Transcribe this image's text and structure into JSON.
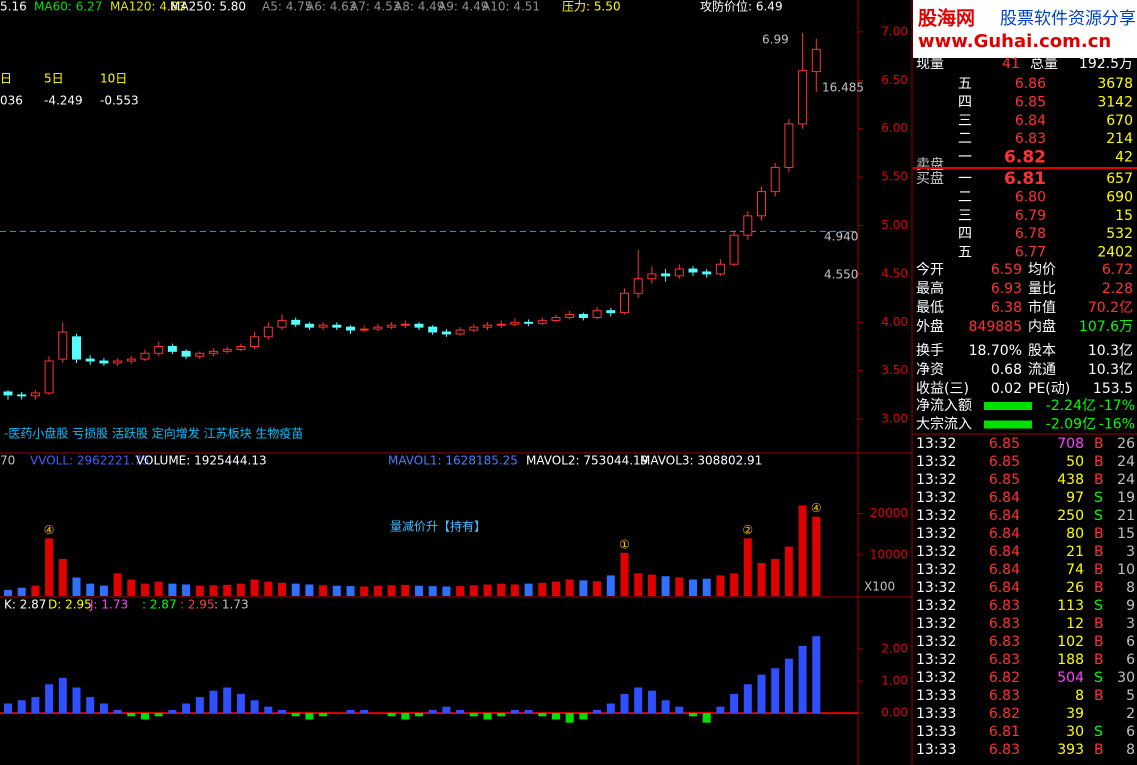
{
  "top_bar": [
    "5.16",
    "MA60: 6.27",
    "MA120: 4.83",
    "MA250: 5.80",
    "A5: 4.75",
    "A6: 4.63",
    "A7: 4.53",
    "A8: 4.49",
    "A9: 4.49",
    "A10: 4.51",
    "压力: 5.50",
    "攻防价位: 6.49"
  ],
  "period_labels": [
    "日",
    "5日",
    "10日"
  ],
  "period_values": [
    "036",
    "-4.249",
    "-0.553"
  ],
  "price_chart": {
    "type": "candlestick",
    "open": [
      3.28,
      3.25,
      3.24,
      3.27,
      3.62,
      3.85,
      3.62,
      3.6,
      3.58,
      3.6,
      3.62,
      3.68,
      3.75,
      3.7,
      3.65,
      3.68,
      3.7,
      3.72,
      3.75,
      3.85,
      3.95,
      4.02,
      3.98,
      3.95,
      3.97,
      3.95,
      3.92,
      3.93,
      3.95,
      3.97,
      3.98,
      3.95,
      3.9,
      3.88,
      3.92,
      3.95,
      3.97,
      3.98,
      4.0,
      3.99,
      4.02,
      4.05,
      4.08,
      4.05,
      4.12,
      4.1,
      4.3,
      4.45,
      4.5,
      4.48,
      4.55,
      4.52,
      4.5,
      4.6,
      4.9,
      5.1,
      5.35,
      5.6,
      6.05,
      6.59
    ],
    "high": [
      3.3,
      3.28,
      3.3,
      3.65,
      4.0,
      3.88,
      3.66,
      3.63,
      3.63,
      3.65,
      3.72,
      3.8,
      3.78,
      3.72,
      3.7,
      3.73,
      3.75,
      3.78,
      3.9,
      4.0,
      4.08,
      4.05,
      4.0,
      4.0,
      4.0,
      3.97,
      3.96,
      3.98,
      4.0,
      4.02,
      4.0,
      3.97,
      3.93,
      3.95,
      3.98,
      4.0,
      4.02,
      4.04,
      4.03,
      4.05,
      4.08,
      4.12,
      4.1,
      4.16,
      4.15,
      4.35,
      4.75,
      4.58,
      4.55,
      4.6,
      4.58,
      4.55,
      4.65,
      4.95,
      5.15,
      5.4,
      5.65,
      6.1,
      6.99,
      6.93
    ],
    "low": [
      3.2,
      3.2,
      3.2,
      3.25,
      3.58,
      3.58,
      3.56,
      3.55,
      3.55,
      3.57,
      3.6,
      3.65,
      3.67,
      3.62,
      3.62,
      3.65,
      3.68,
      3.7,
      3.72,
      3.82,
      3.92,
      3.95,
      3.92,
      3.92,
      3.92,
      3.88,
      3.9,
      3.91,
      3.93,
      3.94,
      3.92,
      3.87,
      3.85,
      3.86,
      3.9,
      3.92,
      3.94,
      3.96,
      3.96,
      3.97,
      4.0,
      4.03,
      4.02,
      4.03,
      4.06,
      4.08,
      4.25,
      4.4,
      4.42,
      4.45,
      4.48,
      4.46,
      4.48,
      4.58,
      4.85,
      5.05,
      5.3,
      5.55,
      6.0,
      6.38
    ],
    "close": [
      3.25,
      3.24,
      3.27,
      3.6,
      3.9,
      3.62,
      3.6,
      3.58,
      3.6,
      3.62,
      3.68,
      3.75,
      3.7,
      3.65,
      3.68,
      3.7,
      3.72,
      3.75,
      3.85,
      3.95,
      4.02,
      3.98,
      3.95,
      3.97,
      3.95,
      3.92,
      3.93,
      3.95,
      3.97,
      3.98,
      3.95,
      3.9,
      3.88,
      3.92,
      3.95,
      3.97,
      3.98,
      4.0,
      3.99,
      4.02,
      4.05,
      4.08,
      4.05,
      4.12,
      4.1,
      4.3,
      4.45,
      4.5,
      4.48,
      4.55,
      4.52,
      4.5,
      4.6,
      4.9,
      5.1,
      5.35,
      5.6,
      6.05,
      6.6,
      6.82
    ],
    "ylim": [
      2.66,
      7.33
    ],
    "yticks": [
      {
        "value": 7,
        "label": "7.00"
      },
      {
        "value": 6.5,
        "label": "6.50"
      },
      {
        "value": 6,
        "label": "6.00"
      },
      {
        "value": 5.5,
        "label": "5.50"
      },
      {
        "value": 5,
        "label": "5.00"
      },
      {
        "value": 4.5,
        "label": "4.50"
      },
      {
        "value": 4,
        "label": "4.00"
      },
      {
        "value": 3.5,
        "label": "3.50"
      },
      {
        "value": 3,
        "label": "3.00"
      }
    ],
    "reference_line": 4.94,
    "high_label": "6.99",
    "ma_label": "16.485",
    "level_labels": [
      "4.940",
      "4.550"
    ],
    "tags": "-医药小盘股 亏损股 活跃股 定向增发 江苏板块 生物疫苗"
  },
  "volume_chart": {
    "type": "bar",
    "header": [
      "70",
      "VVOLL: 2962221.75",
      "VOLUME: 1925444.13",
      "MAVOL1: 1628185.25",
      "MAVOL2: 753044.19",
      "MAVOL3: 308802.91"
    ],
    "signal": "量减价升【持有】",
    "unit": "X100",
    "markers": [
      "④",
      "①",
      "②",
      "④"
    ],
    "values": [
      1500,
      2000,
      2500,
      14000,
      9000,
      4500,
      3000,
      2500,
      5500,
      4000,
      3000,
      3500,
      3000,
      2800,
      2500,
      2600,
      2700,
      3000,
      4000,
      3500,
      3200,
      3000,
      2800,
      2600,
      2500,
      2400,
      2300,
      2500,
      2600,
      2700,
      2500,
      2400,
      2300,
      2400,
      2600,
      2800,
      3000,
      2800,
      3000,
      3200,
      3500,
      4000,
      3800,
      3600,
      5000,
      10500,
      5500,
      5200,
      4800,
      4500,
      4000,
      4200,
      5000,
      5500,
      14000,
      8000,
      9000,
      12000,
      22000,
      19254
    ],
    "ylim": [
      0,
      34000
    ],
    "yticks": [
      20000,
      10000
    ]
  },
  "kdj_chart": {
    "type": "bar",
    "header": [
      "K: 2.87",
      "D: 2.95",
      "J: 1.73",
      ": 2.87",
      ": 2.95",
      ": 1.73"
    ],
    "values": [
      0.3,
      0.4,
      0.5,
      0.9,
      1.1,
      0.8,
      0.5,
      0.3,
      0.1,
      -0.1,
      -0.2,
      -0.1,
      0.1,
      0.3,
      0.5,
      0.7,
      0.8,
      0.6,
      0.4,
      0.2,
      0.1,
      -0.1,
      -0.2,
      -0.1,
      0,
      0.1,
      0.1,
      0,
      -0.1,
      -0.2,
      -0.1,
      0.1,
      0.2,
      0.1,
      -0.1,
      -0.2,
      -0.1,
      0.1,
      0.1,
      -0.1,
      -0.2,
      -0.3,
      -0.2,
      0.1,
      0.3,
      0.6,
      0.8,
      0.7,
      0.4,
      0.2,
      -0.1,
      -0.3,
      0.2,
      0.6,
      0.9,
      1.2,
      1.4,
      1.7,
      2.1,
      2.4
    ],
    "ylim": [
      -1.62,
      3.53
    ],
    "yticks": [
      {
        "value": 2,
        "label": "2.00"
      },
      {
        "value": 1,
        "label": "1.00"
      },
      {
        "value": 0,
        "label": "0.00"
      }
    ]
  },
  "logo": {
    "brand": "股海网",
    "slogan": "股票软件资源分享",
    "url": "www.Guhai.com.cn"
  },
  "quote": [
    "现量",
    "41",
    "总量",
    "192.5万"
  ],
  "asks": [
    [
      "五",
      "6.86",
      "3678"
    ],
    [
      "四",
      "6.85",
      "3142"
    ],
    [
      "三",
      "6.84",
      "670"
    ],
    [
      "二",
      "6.83",
      "214"
    ],
    [
      "一",
      "6.82",
      "42"
    ]
  ],
  "ask_label": "卖盘",
  "bid_label": "买盘",
  "bids": [
    [
      "一",
      "6.81",
      "657"
    ],
    [
      "二",
      "6.80",
      "690"
    ],
    [
      "三",
      "6.79",
      "15"
    ],
    [
      "四",
      "6.78",
      "532"
    ],
    [
      "五",
      "6.77",
      "2402"
    ]
  ],
  "stats": [
    [
      "今开",
      "6.59",
      "均价",
      "6.72"
    ],
    [
      "最高",
      "6.93",
      "量比",
      "2.28"
    ],
    [
      "最低",
      "6.38",
      "市值",
      "70.2亿"
    ],
    [
      "外盘",
      "849885",
      "内盘",
      "107.6万"
    ],
    [
      "换手",
      "18.70%",
      "股本",
      "10.3亿"
    ],
    [
      "净资",
      "0.68",
      "流通",
      "10.3亿"
    ],
    [
      "收益(三)",
      "0.02",
      "PE(动)",
      "153.5"
    ]
  ],
  "flows": [
    [
      "净流入额",
      "-2.24亿",
      "-17%"
    ],
    [
      "大宗流入",
      "-2.09亿",
      "-16%"
    ]
  ],
  "trades": [
    [
      "13:32",
      "6.85",
      "708",
      "B",
      "26"
    ],
    [
      "13:32",
      "6.85",
      "50",
      "B",
      "24"
    ],
    [
      "13:32",
      "6.85",
      "438",
      "B",
      "24"
    ],
    [
      "13:32",
      "6.84",
      "97",
      "S",
      "19"
    ],
    [
      "13:32",
      "6.84",
      "250",
      "S",
      "21"
    ],
    [
      "13:32",
      "6.84",
      "80",
      "B",
      "15"
    ],
    [
      "13:32",
      "6.84",
      "21",
      "B",
      "3"
    ],
    [
      "13:32",
      "6.84",
      "74",
      "B",
      "10"
    ],
    [
      "13:32",
      "6.84",
      "26",
      "B",
      "8"
    ],
    [
      "13:32",
      "6.83",
      "113",
      "S",
      "9"
    ],
    [
      "13:32",
      "6.83",
      "12",
      "B",
      "3"
    ],
    [
      "13:32",
      "6.83",
      "102",
      "B",
      "6"
    ],
    [
      "13:32",
      "6.83",
      "188",
      "B",
      "6"
    ],
    [
      "13:32",
      "6.82",
      "504",
      "S",
      "30"
    ],
    [
      "13:33",
      "6.83",
      "8",
      "B",
      "5"
    ],
    [
      "13:33",
      "6.82",
      "39",
      "2"
    ],
    [
      "13:33",
      "6.81",
      "30",
      "S",
      "6"
    ],
    [
      "13:33",
      "6.83",
      "393",
      "B",
      "8"
    ]
  ]
}
